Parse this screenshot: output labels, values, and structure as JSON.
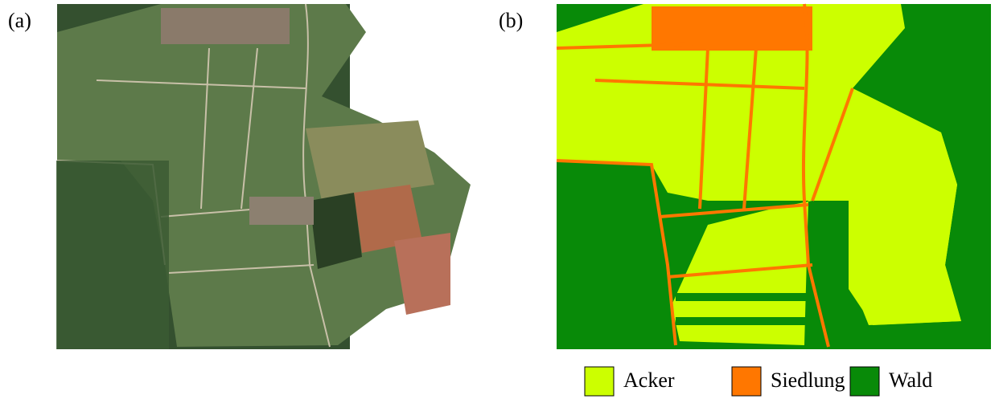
{
  "panels": [
    {
      "label": "(a)"
    },
    {
      "label": "(b)"
    }
  ],
  "legend": [
    {
      "name": "Acker",
      "color": "#ccff00"
    },
    {
      "name": "Siedlung",
      "color": "#ff7700"
    },
    {
      "name": "Wald",
      "color": "#088a08"
    }
  ]
}
